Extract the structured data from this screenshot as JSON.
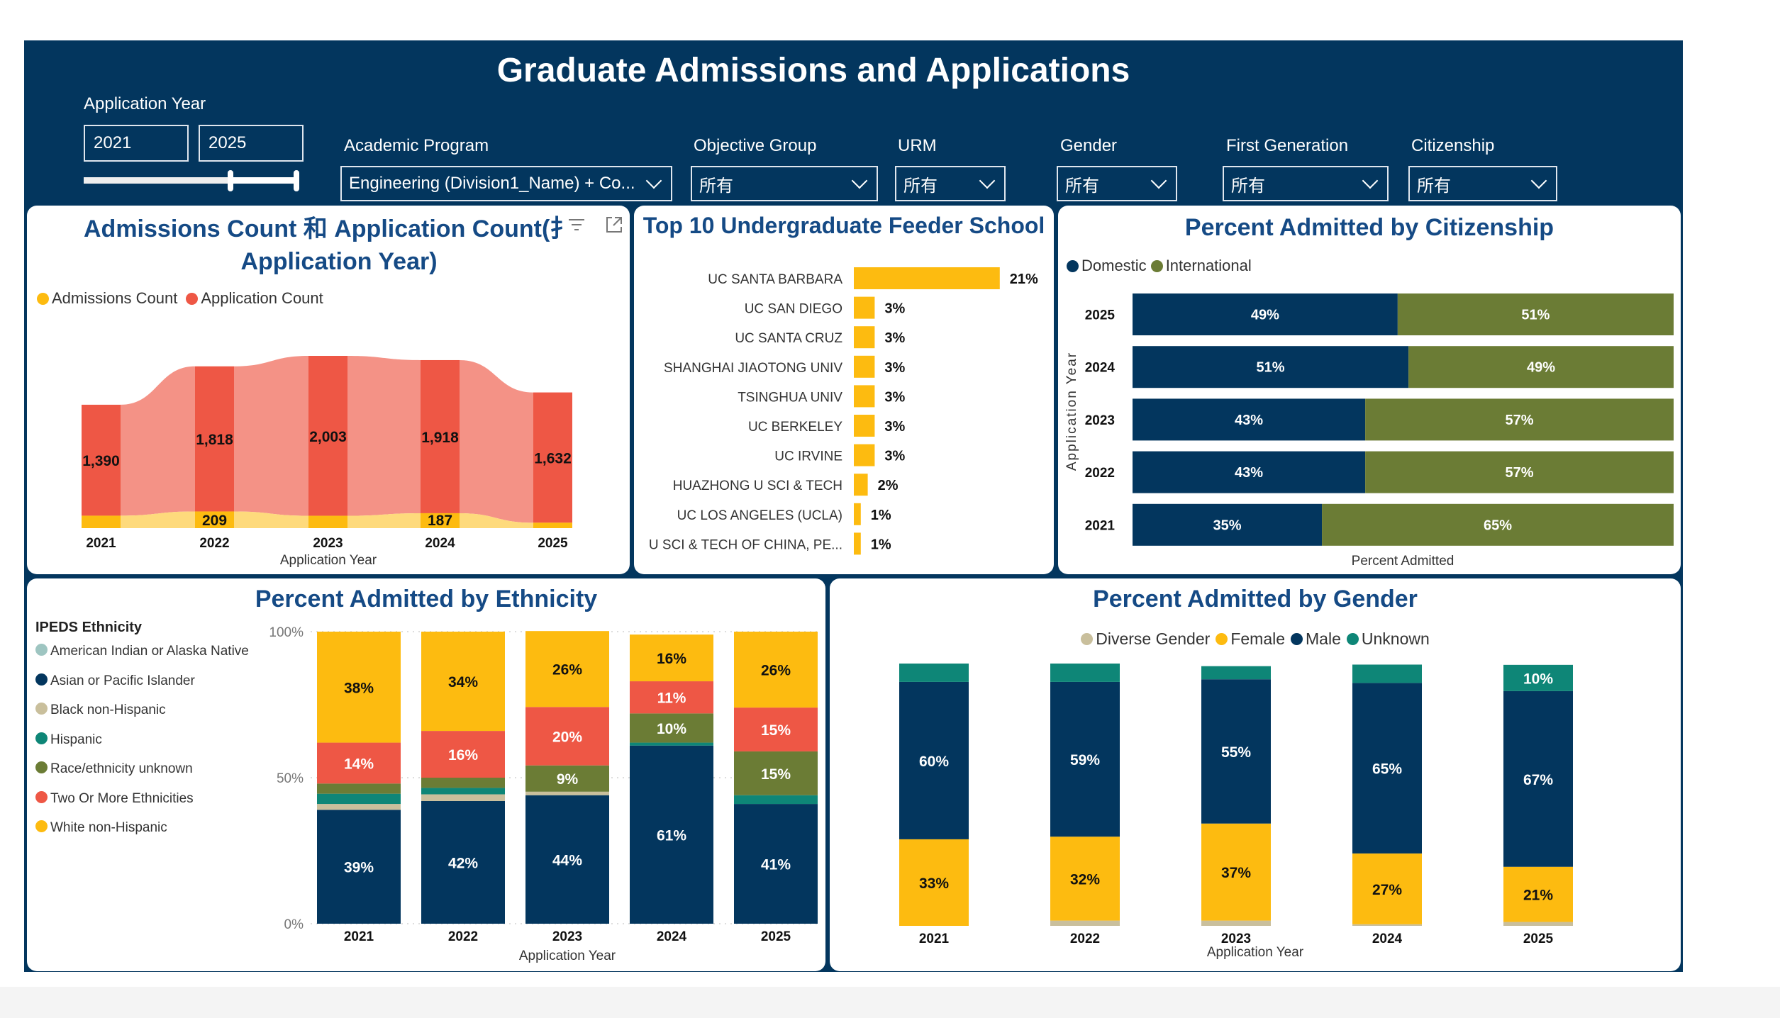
{
  "header": {
    "title": "Graduate Admissions and Applications"
  },
  "filters": {
    "year_label": "Application Year",
    "year_from": "2021",
    "year_to": "2025",
    "year_slider": {
      "min": 2021,
      "max": 2025,
      "from": 2024,
      "to": 2025
    },
    "academic_program": {
      "label": "Academic Program",
      "value": "Engineering (Division1_Name) + Co..."
    },
    "objective_group": {
      "label": "Objective Group",
      "value": "所有"
    },
    "urm": {
      "label": "URM",
      "value": "所有"
    },
    "gender": {
      "label": "Gender",
      "value": "所有"
    },
    "first_generation": {
      "label": "First Generation",
      "value": "所有"
    },
    "citizenship": {
      "label": "Citizenship",
      "value": "所有"
    }
  },
  "colors": {
    "navy": "#03365e",
    "yellow": "#fdbb10",
    "red": "#ee5745",
    "olive": "#6b7c35",
    "teal": "#0e8677",
    "beige": "#c9bf9c",
    "lightteal": "#9ec5c1",
    "title": "#154a85"
  },
  "chart_data": [
    {
      "type": "ribbon",
      "title_line1": "Admissions Count 和 Application Count(扌",
      "title_line2": "Application Year)",
      "xlabel": "Application Year",
      "categories": [
        "2021",
        "2022",
        "2023",
        "2024",
        "2025"
      ],
      "series": [
        {
          "name": "Admissions Count",
          "values": [
            156,
            209,
            155,
            187,
            68
          ],
          "labels": [
            "",
            "209",
            "",
            "187",
            ""
          ],
          "color": "#fdbb10"
        },
        {
          "name": "Application Count",
          "values": [
            1390,
            1818,
            2003,
            1918,
            1632
          ],
          "labels": [
            "1,390",
            "1,818",
            "2,003",
            "1,918",
            "1,632"
          ],
          "color": "#ee5745"
        }
      ]
    },
    {
      "type": "bar",
      "title": "Top 10 Undergraduate Feeder School",
      "categories": [
        "UC SANTA BARBARA",
        "UC SAN DIEGO",
        "UC SANTA CRUZ",
        "SHANGHAI JIAOTONG UNIV",
        "TSINGHUA UNIV",
        "UC BERKELEY",
        "UC IRVINE",
        "HUAZHONG U SCI & TECH",
        "UC LOS ANGELES (UCLA)",
        "U SCI & TECH OF CHINA, PE..."
      ],
      "values": [
        21,
        3,
        3,
        3,
        3,
        3,
        3,
        2,
        1,
        1
      ],
      "labels": [
        "21%",
        "3%",
        "3%",
        "3%",
        "3%",
        "3%",
        "3%",
        "2%",
        "1%",
        "1%"
      ]
    },
    {
      "type": "bar",
      "stacked": "100%",
      "orientation": "horizontal",
      "title": "Percent Admitted by Citizenship",
      "ylabel": "Application Year",
      "xlabel": "Percent Admitted",
      "categories": [
        "2025",
        "2024",
        "2023",
        "2022",
        "2021"
      ],
      "series": [
        {
          "name": "Domestic",
          "values": [
            49,
            51,
            43,
            43,
            35
          ],
          "color": "#03365e"
        },
        {
          "name": "International",
          "values": [
            51,
            49,
            57,
            57,
            65
          ],
          "color": "#6b7c35"
        }
      ]
    },
    {
      "type": "bar",
      "stacked": "100%",
      "title": "Percent Admitted by Ethnicity",
      "legend_title": "IPEDS Ethnicity",
      "xlabel": "Application Year",
      "categories": [
        "2021",
        "2022",
        "2023",
        "2024",
        "2025"
      ],
      "yticks": [
        "0%",
        "50%",
        "100%"
      ],
      "legend": [
        "American Indian or Alaska Native",
        "Asian or Pacific Islander",
        "Black non-Hispanic",
        "Hispanic",
        "Race/ethnicity unknown",
        "Two Or More Ethnicities",
        "White non-Hispanic"
      ],
      "series": [
        {
          "name": "Asian or Pacific Islander",
          "values": [
            39,
            42,
            44,
            61,
            41
          ],
          "color": "#03365e"
        },
        {
          "name": "Black non-Hispanic",
          "values": [
            2,
            2.3,
            1.2,
            0,
            0
          ],
          "color": "#c9bf9c"
        },
        {
          "name": "Hispanic",
          "values": [
            3.5,
            2.2,
            0,
            1,
            3
          ],
          "color": "#0e8677"
        },
        {
          "name": "Race/ethnicity unknown",
          "values": [
            3.5,
            3.5,
            9,
            10,
            15
          ],
          "color": "#6b7c35"
        },
        {
          "name": "Two Or More Ethnicities",
          "values": [
            14,
            16,
            20,
            11,
            15
          ],
          "color": "#ee5745"
        },
        {
          "name": "White non-Hispanic",
          "values": [
            38,
            34,
            26,
            16,
            26
          ],
          "color": "#fdbb10"
        },
        {
          "name": "American Indian or Alaska Native",
          "values": [
            0,
            0,
            0,
            0,
            0
          ],
          "color": "#9ec5c1"
        }
      ]
    },
    {
      "type": "bar",
      "stacked": "100%",
      "title": "Percent Admitted by Gender",
      "xlabel": "Application Year",
      "categories": [
        "2021",
        "2022",
        "2023",
        "2024",
        "2025"
      ],
      "series": [
        {
          "name": "Diverse Gender",
          "values": [
            0,
            2,
            2,
            0.6,
            1.5
          ],
          "color": "#c9bf9c"
        },
        {
          "name": "Female",
          "values": [
            33,
            32,
            37,
            27,
            21
          ],
          "color": "#fdbb10"
        },
        {
          "name": "Male",
          "values": [
            60,
            59,
            55,
            65,
            67
          ],
          "color": "#03365e"
        },
        {
          "name": "Unknown",
          "values": [
            7,
            7,
            5,
            7,
            10
          ],
          "color": "#0e8677"
        }
      ]
    }
  ]
}
